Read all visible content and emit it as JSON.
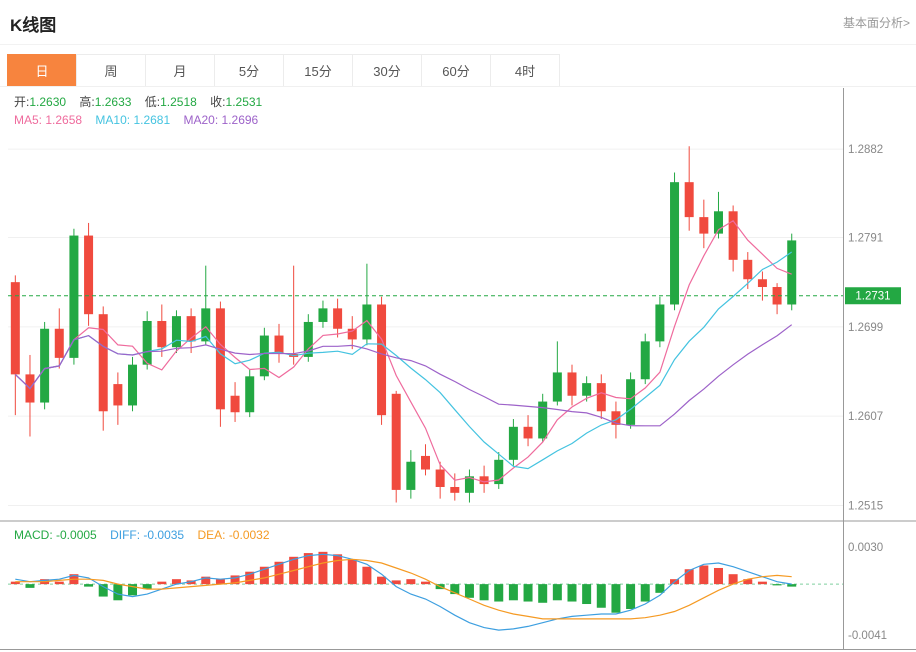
{
  "header": {
    "title": "K线图",
    "link": "基本面分析>"
  },
  "tabs": [
    {
      "key": "day",
      "label": "日",
      "active": true
    },
    {
      "key": "week",
      "label": "周",
      "active": false
    },
    {
      "key": "month",
      "label": "月",
      "active": false
    },
    {
      "key": "5min",
      "label": "5分",
      "active": false
    },
    {
      "key": "15min",
      "label": "15分",
      "active": false
    },
    {
      "key": "30min",
      "label": "30分",
      "active": false
    },
    {
      "key": "60min",
      "label": "60分",
      "active": false
    },
    {
      "key": "4hour",
      "label": "4时",
      "active": false
    }
  ],
  "info_bar": {
    "ohlc": [
      {
        "label": "开:",
        "value": "1.2630"
      },
      {
        "label": "高:",
        "value": "1.2633"
      },
      {
        "label": "低:",
        "value": "1.2518"
      },
      {
        "label": "收:",
        "value": "1.2531"
      }
    ],
    "ma": [
      {
        "label": "MA5:",
        "value": "1.2658"
      },
      {
        "label": "MA10:",
        "value": "1.2681"
      },
      {
        "label": "MA20:",
        "value": "1.2696"
      }
    ]
  },
  "macd_bar": [
    {
      "label": "MACD:",
      "value": "-0.0005"
    },
    {
      "label": "DIFF:",
      "value": "-0.0035"
    },
    {
      "label": "DEA:",
      "value": "-0.0032"
    }
  ],
  "colors": {
    "up": "#23a843",
    "down": "#f04a3e",
    "ma5": "#ef6b9d",
    "ma10": "#44c3e0",
    "ma20": "#9d62c9",
    "diff": "#3d9fe0",
    "dea": "#f59a23",
    "price_line": "#23a843",
    "tag_bg": "#23a843",
    "tag_text": "#ffffff",
    "axis_text": "#888888",
    "grid": "#f0f0f0",
    "zero_line": "#7fcf9f",
    "border": "#999999",
    "tab_active_bg": "#f7843e"
  },
  "chart_data": {
    "type": "candlestick",
    "title": "K线图",
    "panels": [
      "price",
      "macd"
    ],
    "legend": [
      "MA5",
      "MA10",
      "MA20",
      "DIFF",
      "DEA",
      "MACD"
    ],
    "y_axis_labels": [
      "1.2882",
      "1.2791",
      "1.2699",
      "1.2607",
      "1.2515"
    ],
    "price_range": [
      1.25,
      1.2945
    ],
    "current_price": 1.2731,
    "current_price_label": "1.2731",
    "ma_periods": [
      5,
      10,
      20
    ],
    "candles_ohlc": [
      [
        1.2745,
        1.2752,
        1.2608,
        1.265
      ],
      [
        1.265,
        1.267,
        1.2586,
        1.2621
      ],
      [
        1.2621,
        1.2704,
        1.2614,
        1.2697
      ],
      [
        1.2697,
        1.2718,
        1.2656,
        1.2667
      ],
      [
        1.2667,
        1.28,
        1.266,
        1.2793
      ],
      [
        1.2793,
        1.2806,
        1.27,
        1.2712
      ],
      [
        1.2712,
        1.272,
        1.2592,
        1.2612
      ],
      [
        1.264,
        1.2652,
        1.2598,
        1.2618
      ],
      [
        1.2618,
        1.2668,
        1.2612,
        1.266
      ],
      [
        1.266,
        1.2715,
        1.2655,
        1.2705
      ],
      [
        1.2705,
        1.2722,
        1.2668,
        1.2678
      ],
      [
        1.2678,
        1.2716,
        1.2672,
        1.271
      ],
      [
        1.271,
        1.2718,
        1.2672,
        1.2684
      ],
      [
        1.2684,
        1.2762,
        1.268,
        1.2718
      ],
      [
        1.2718,
        1.2725,
        1.2596,
        1.2614
      ],
      [
        1.2628,
        1.2642,
        1.2601,
        1.2611
      ],
      [
        1.2611,
        1.2655,
        1.2606,
        1.2648
      ],
      [
        1.2648,
        1.2698,
        1.2644,
        1.269
      ],
      [
        1.269,
        1.2702,
        1.2662,
        1.2671
      ],
      [
        1.2671,
        1.2762,
        1.266,
        1.2668
      ],
      [
        1.2668,
        1.2712,
        1.2663,
        1.2704
      ],
      [
        1.2704,
        1.2726,
        1.2698,
        1.2718
      ],
      [
        1.2718,
        1.2728,
        1.2688,
        1.2697
      ],
      [
        1.2697,
        1.271,
        1.2676,
        1.2686
      ],
      [
        1.2686,
        1.2764,
        1.268,
        1.2722
      ],
      [
        1.2722,
        1.273,
        1.2598,
        1.2608
      ],
      [
        1.263,
        1.2633,
        1.2518,
        1.2531
      ],
      [
        1.2531,
        1.2572,
        1.2522,
        1.256
      ],
      [
        1.2566,
        1.2578,
        1.2546,
        1.2552
      ],
      [
        1.2552,
        1.256,
        1.2522,
        1.2534
      ],
      [
        1.2534,
        1.2548,
        1.252,
        1.2528
      ],
      [
        1.2528,
        1.2552,
        1.2518,
        1.2545
      ],
      [
        1.2545,
        1.2556,
        1.2528,
        1.2537
      ],
      [
        1.2537,
        1.257,
        1.2532,
        1.2562
      ],
      [
        1.2562,
        1.2604,
        1.2556,
        1.2596
      ],
      [
        1.2596,
        1.2608,
        1.2576,
        1.2584
      ],
      [
        1.2584,
        1.263,
        1.258,
        1.2622
      ],
      [
        1.2622,
        1.2684,
        1.2618,
        1.2652
      ],
      [
        1.2652,
        1.266,
        1.2618,
        1.2628
      ],
      [
        1.2628,
        1.2648,
        1.2622,
        1.2641
      ],
      [
        1.2641,
        1.265,
        1.2604,
        1.2612
      ],
      [
        1.2612,
        1.2622,
        1.2584,
        1.2598
      ],
      [
        1.2598,
        1.2652,
        1.2594,
        1.2645
      ],
      [
        1.2645,
        1.2692,
        1.264,
        1.2684
      ],
      [
        1.2684,
        1.273,
        1.2678,
        1.2722
      ],
      [
        1.2722,
        1.2858,
        1.2716,
        1.2848
      ],
      [
        1.2848,
        1.2885,
        1.2798,
        1.2812
      ],
      [
        1.2812,
        1.283,
        1.278,
        1.2795
      ],
      [
        1.2795,
        1.2838,
        1.279,
        1.2818
      ],
      [
        1.2818,
        1.2824,
        1.2756,
        1.2768
      ],
      [
        1.2768,
        1.2776,
        1.2738,
        1.2748
      ],
      [
        1.2748,
        1.2756,
        1.2726,
        1.274
      ],
      [
        1.274,
        1.2744,
        1.2712,
        1.2722
      ],
      [
        1.2722,
        1.2795,
        1.2716,
        1.2788
      ]
    ],
    "macd": {
      "range": [
        -0.0053,
        0.005
      ],
      "axis_labels": [
        "0.0030",
        "-0.0041"
      ],
      "axis_label_values": [
        0.003,
        -0.0041
      ],
      "hist": [
        0.0002,
        -0.0003,
        0.0004,
        0.0002,
        0.0008,
        -0.0002,
        -0.001,
        -0.0013,
        -0.0009,
        -0.0004,
        0.0002,
        0.0004,
        0.0003,
        0.0006,
        0.0004,
        0.0007,
        0.001,
        0.0014,
        0.0018,
        0.0022,
        0.0025,
        0.0026,
        0.0024,
        0.002,
        0.0014,
        0.0006,
        0.0003,
        0.0004,
        0.0002,
        -0.0004,
        -0.0008,
        -0.0011,
        -0.0013,
        -0.0014,
        -0.0013,
        -0.0014,
        -0.0015,
        -0.0013,
        -0.0014,
        -0.0016,
        -0.0019,
        -0.0023,
        -0.002,
        -0.0014,
        -0.0007,
        0.0004,
        0.0012,
        0.0015,
        0.0013,
        0.0008,
        0.0004,
        0.0002,
        -0.0001,
        -0.0002
      ],
      "diff": [
        0.0004,
        0.0002,
        0.0003,
        0.0004,
        0.0007,
        0.0005,
        -0.0002,
        -0.0008,
        -0.001,
        -0.0008,
        -0.0004,
        0.0,
        0.0002,
        0.0005,
        0.0004,
        0.0005,
        0.0008,
        0.0012,
        0.0016,
        0.002,
        0.0023,
        0.0024,
        0.0023,
        0.002,
        0.0016,
        0.0008,
        -0.0002,
        -0.0008,
        -0.0012,
        -0.0018,
        -0.0025,
        -0.0031,
        -0.0035,
        -0.0037,
        -0.0036,
        -0.0034,
        -0.0031,
        -0.0028,
        -0.0026,
        -0.0025,
        -0.0024,
        -0.0024,
        -0.0021,
        -0.0016,
        -0.0009,
        0.0002,
        0.0011,
        0.0016,
        0.0017,
        0.0014,
        0.001,
        0.0006,
        0.0002,
        0.0
      ],
      "dea": [
        0.0002,
        0.0002,
        0.0002,
        0.0003,
        0.0004,
        0.0004,
        0.0003,
        0.0,
        -0.0002,
        -0.0004,
        -0.0004,
        -0.0003,
        -0.0002,
        -0.0001,
        0.0,
        0.0001,
        0.0003,
        0.0005,
        0.0008,
        0.0011,
        0.0014,
        0.0017,
        0.0019,
        0.002,
        0.0019,
        0.0017,
        0.0013,
        0.0009,
        0.0004,
        -0.0002,
        -0.0007,
        -0.0012,
        -0.0017,
        -0.0021,
        -0.0024,
        -0.0026,
        -0.0028,
        -0.0028,
        -0.0028,
        -0.0028,
        -0.0028,
        -0.0028,
        -0.0028,
        -0.0027,
        -0.0025,
        -0.0022,
        -0.0017,
        -0.0011,
        -0.0005,
        0.0,
        0.0004,
        0.0006,
        0.0007,
        0.0006
      ]
    }
  }
}
